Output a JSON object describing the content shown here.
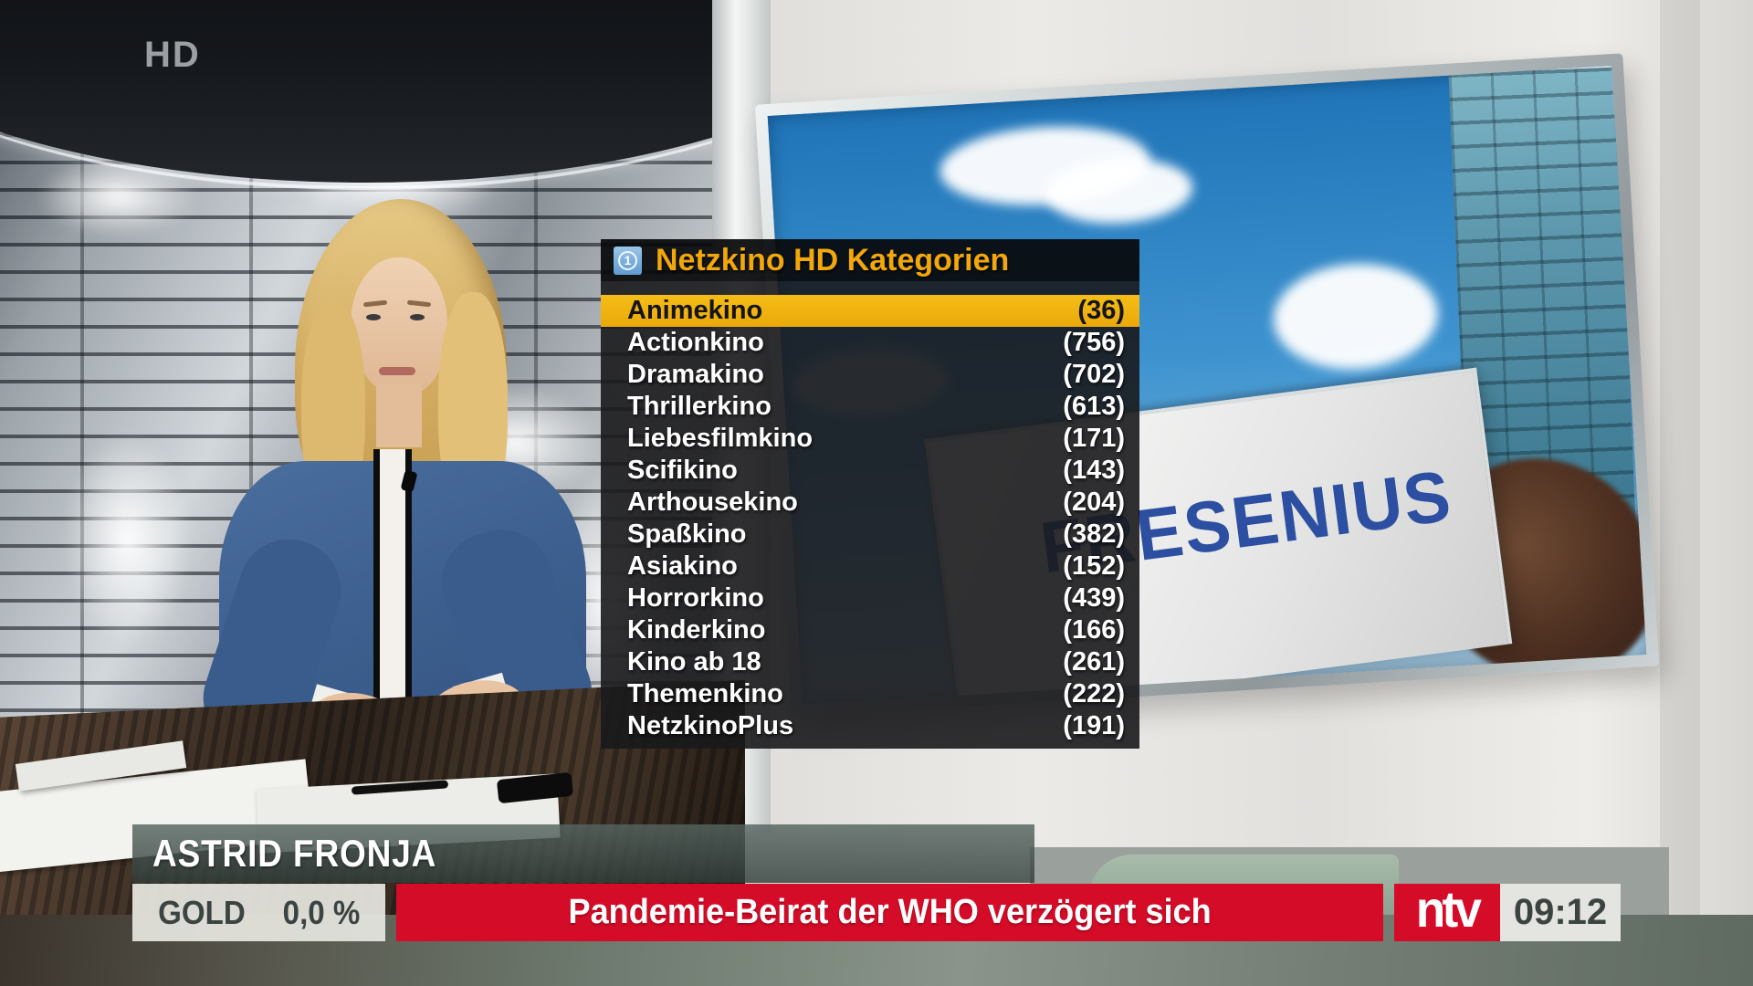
{
  "watermark": "HD",
  "menu": {
    "header": {
      "badge": "1",
      "title": "Netzkino HD Kategorien"
    },
    "items": [
      {
        "label": "Animekino",
        "count": "(36)",
        "selected": true
      },
      {
        "label": "Actionkino",
        "count": "(756)",
        "selected": false
      },
      {
        "label": "Dramakino",
        "count": "(702)",
        "selected": false
      },
      {
        "label": "Thrillerkino",
        "count": "(613)",
        "selected": false
      },
      {
        "label": "Liebesfilmkino",
        "count": "(171)",
        "selected": false
      },
      {
        "label": "Scifikino",
        "count": "(143)",
        "selected": false
      },
      {
        "label": "Arthousekino",
        "count": "(204)",
        "selected": false
      },
      {
        "label": "Spaßkino",
        "count": "(382)",
        "selected": false
      },
      {
        "label": "Asiakino",
        "count": "(152)",
        "selected": false
      },
      {
        "label": "Horrorkino",
        "count": "(439)",
        "selected": false
      },
      {
        "label": "Kinderkino",
        "count": "(166)",
        "selected": false
      },
      {
        "label": "Kino ab 18",
        "count": "(261)",
        "selected": false
      },
      {
        "label": "Themenkino",
        "count": "(222)",
        "selected": false
      },
      {
        "label": "NetzkinoPlus",
        "count": "(191)",
        "selected": false
      }
    ]
  },
  "studio_screen": {
    "sign_text": "FRESENIUS"
  },
  "lower_third": {
    "presenter_name": "ASTRID FRONJA",
    "market": {
      "instrument": "GOLD",
      "change": "0,0 %"
    },
    "headline": "Pandemie-Beirat der WHO verzögert sich",
    "channel_logo": "ntv",
    "clock": "09:12"
  },
  "colors": {
    "menu_highlight": "#eeb10d",
    "menu_title": "#f2a70b",
    "banner_red": "#d50c28",
    "badge_blue": "#6ba3d6",
    "blouse_blue": "#3d6090"
  }
}
